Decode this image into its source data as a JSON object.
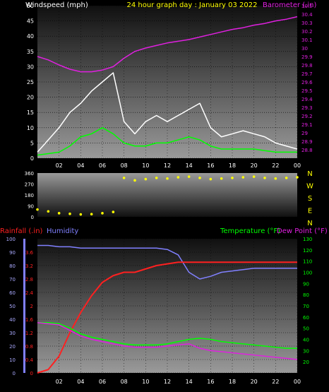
{
  "chart_data": [
    {
      "type": "line",
      "title": "24 hour graph day : January 03 2022",
      "left_axis_label": "Windspeed (mph)",
      "right_axis_label": "Barometer (.in)",
      "x_ticks": [
        "02",
        "04",
        "06",
        "08",
        "10",
        "12",
        "14",
        "16",
        "18",
        "20",
        "22",
        "00"
      ],
      "ylim_left": [
        0,
        50
      ],
      "y_ticks_left": [
        "0",
        "5",
        "10",
        "15",
        "20",
        "25",
        "30",
        "35",
        "40",
        "45",
        "50"
      ],
      "ylim_right": [
        28.7,
        30.5
      ],
      "y_ticks_right": [
        "28.8",
        "28.9",
        "29",
        "29.1",
        "29.2",
        "29.3",
        "29.4",
        "29.5",
        "29.6",
        "29.7",
        "29.8",
        "29.9",
        "30",
        "30.1",
        "30.2",
        "30.3",
        "30.4",
        "30.5"
      ],
      "series": [
        {
          "role": "wind_gust",
          "color": "#ffffff",
          "x": [
            0,
            1,
            2,
            3,
            4,
            5,
            6,
            7,
            8,
            9,
            10,
            11,
            12,
            13,
            14,
            15,
            16,
            17,
            18,
            19,
            20,
            21,
            22,
            23,
            24
          ],
          "values": [
            2,
            6,
            10,
            15,
            18,
            22,
            25,
            28,
            12,
            8,
            12,
            14,
            12,
            14,
            16,
            18,
            10,
            7,
            8,
            9,
            8,
            7,
            5,
            4,
            3
          ]
        },
        {
          "role": "wind_avg",
          "color": "#00ff00",
          "x": [
            0,
            1,
            2,
            3,
            4,
            5,
            6,
            7,
            8,
            9,
            10,
            11,
            12,
            13,
            14,
            15,
            16,
            17,
            18,
            19,
            20,
            21,
            22,
            23,
            24
          ],
          "values": [
            1,
            1.5,
            2,
            4,
            7,
            8,
            10,
            8,
            5,
            4,
            4,
            5,
            5,
            6,
            7,
            6,
            4,
            3,
            3,
            3,
            3,
            2.5,
            2,
            2,
            2
          ]
        },
        {
          "role": "barometer",
          "color": "#e020e0",
          "x": [
            0,
            1,
            2,
            3,
            4,
            5,
            6,
            7,
            8,
            9,
            10,
            11,
            12,
            13,
            14,
            15,
            16,
            17,
            18,
            19,
            20,
            21,
            22,
            23,
            24
          ],
          "values": [
            29.9,
            29.86,
            29.8,
            29.75,
            29.72,
            29.72,
            29.74,
            29.78,
            29.88,
            29.96,
            30.0,
            30.03,
            30.06,
            30.08,
            30.1,
            30.13,
            30.16,
            30.19,
            30.22,
            30.24,
            30.27,
            30.29,
            30.32,
            30.34,
            30.37
          ]
        }
      ]
    },
    {
      "type": "scatter",
      "right_labels": [
        "N",
        "W",
        "S",
        "E",
        "N"
      ],
      "ylim": [
        0,
        360
      ],
      "y_ticks": [
        "0",
        "90",
        "180",
        "270",
        "360"
      ],
      "series": [
        {
          "role": "wind_direction",
          "color": "#ffff00",
          "x": [
            0,
            1,
            2,
            3,
            4,
            5,
            6,
            7,
            8,
            9,
            10,
            11,
            12,
            13,
            14,
            15,
            16,
            17,
            18,
            19,
            20,
            21,
            22,
            23,
            24
          ],
          "values": [
            60,
            45,
            30,
            25,
            20,
            22,
            30,
            40,
            320,
            300,
            310,
            320,
            315,
            325,
            330,
            320,
            310,
            315,
            320,
            325,
            330,
            320,
            315,
            320,
            325
          ]
        }
      ]
    },
    {
      "type": "line",
      "legend_rainfall": "Rainfall (.in)",
      "legend_humidity": "Humidity",
      "legend_temperature": "Temperature (°F)",
      "legend_dewpoint": "Dew Point (°F)",
      "x_ticks": [
        "02",
        "04",
        "06",
        "08",
        "10",
        "12",
        "14",
        "16",
        "18",
        "20",
        "22",
        "00"
      ],
      "ylim_humidity": [
        0,
        100
      ],
      "y_ticks_humidity": [
        "0",
        "10",
        "20",
        "30",
        "40",
        "50",
        "60",
        "70",
        "80",
        "90",
        "100"
      ],
      "ylim_rain": [
        0,
        4.0
      ],
      "y_ticks_rain": [
        "0",
        "0.4",
        "0.8",
        "1.2",
        "1.6",
        "2",
        "2.4",
        "2.8",
        "3.2",
        "3.6"
      ],
      "ylim_temp": [
        10,
        130
      ],
      "y_ticks_temp": [
        "20",
        "30",
        "40",
        "50",
        "60",
        "70",
        "80",
        "90",
        "100",
        "110",
        "120",
        "130"
      ],
      "series": [
        {
          "role": "humidity",
          "color": "#8080ff",
          "x": [
            0,
            1,
            2,
            3,
            4,
            5,
            6,
            7,
            8,
            9,
            10,
            11,
            12,
            13,
            14,
            15,
            16,
            17,
            18,
            19,
            20,
            21,
            22,
            23,
            24
          ],
          "values": [
            95,
            95,
            94,
            94,
            93,
            93,
            93,
            93,
            93,
            93,
            93,
            93,
            92,
            88,
            75,
            70,
            72,
            75,
            76,
            77,
            78,
            78,
            78,
            78,
            78
          ]
        },
        {
          "role": "rainfall",
          "color": "#ff2020",
          "x": [
            0,
            1,
            2,
            3,
            4,
            5,
            6,
            7,
            8,
            9,
            10,
            11,
            12,
            13,
            14,
            15,
            16,
            17,
            18,
            19,
            20,
            21,
            22,
            23,
            24
          ],
          "values": [
            0,
            0.1,
            0.5,
            1.2,
            1.8,
            2.3,
            2.7,
            2.9,
            3.0,
            3.0,
            3.1,
            3.2,
            3.25,
            3.3,
            3.3,
            3.3,
            3.3,
            3.3,
            3.3,
            3.3,
            3.3,
            3.3,
            3.3,
            3.3,
            3.3
          ]
        },
        {
          "role": "temperature",
          "color": "#00ff00",
          "x": [
            0,
            1,
            2,
            3,
            4,
            5,
            6,
            7,
            8,
            9,
            10,
            11,
            12,
            13,
            14,
            15,
            16,
            17,
            18,
            19,
            20,
            21,
            22,
            23,
            24
          ],
          "values": [
            55,
            55,
            54,
            50,
            45,
            42,
            40,
            38,
            36,
            35,
            35,
            35,
            36,
            38,
            40,
            41,
            40,
            38,
            37,
            36,
            35,
            34,
            33,
            32,
            32
          ]
        },
        {
          "role": "dew_point",
          "color": "#e020e0",
          "x": [
            0,
            1,
            2,
            3,
            4,
            5,
            6,
            7,
            8,
            9,
            10,
            11,
            12,
            13,
            14,
            15,
            16,
            17,
            18,
            19,
            20,
            21,
            22,
            23,
            24
          ],
          "values": [
            55,
            54,
            53,
            48,
            43,
            40,
            38,
            36,
            34,
            33,
            33,
            33,
            34,
            35,
            36,
            32,
            30,
            29,
            28,
            27,
            26,
            25,
            24,
            23,
            22
          ]
        }
      ]
    }
  ],
  "colors": {
    "wind_label": "#ffffff",
    "title": "#ffff00",
    "barometer": "#e020e0",
    "direction": "#ffff00",
    "rainfall": "#ff2020",
    "humidity": "#8080ff",
    "temperature": "#00ff00",
    "dew_point": "#e020e0"
  }
}
